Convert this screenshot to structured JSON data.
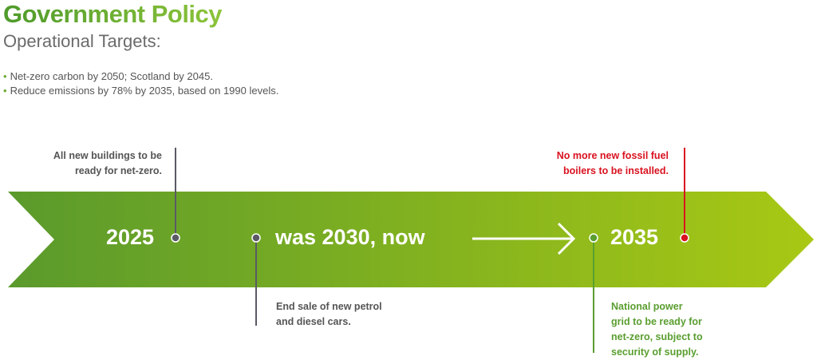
{
  "header": {
    "title": "Government Policy",
    "subtitle": "Operational Targets:"
  },
  "bullets": [
    "Net-zero carbon by 2050; Scotland by 2045.",
    "Reduce emissions by 78% by 2035, based on 1990 levels."
  ],
  "timeline": {
    "labels": {
      "y2025": "2025",
      "y2030": "was 2030, now",
      "y2035": "2035"
    },
    "notes": {
      "buildings": [
        "All new buildings to be",
        "ready for net-zero."
      ],
      "cars": [
        "End sale of new petrol",
        "and diesel cars."
      ],
      "boilers": [
        "No more new fossil fuel",
        "boilers to be installed."
      ],
      "grid": [
        "National power",
        "grid to be ready for",
        "net-zero, subject to",
        "security of supply."
      ]
    }
  },
  "colors": {
    "green_dark": "#5a9e2f",
    "green_light": "#a8c814",
    "red": "#d9121f",
    "gray": "#5a5a66"
  }
}
